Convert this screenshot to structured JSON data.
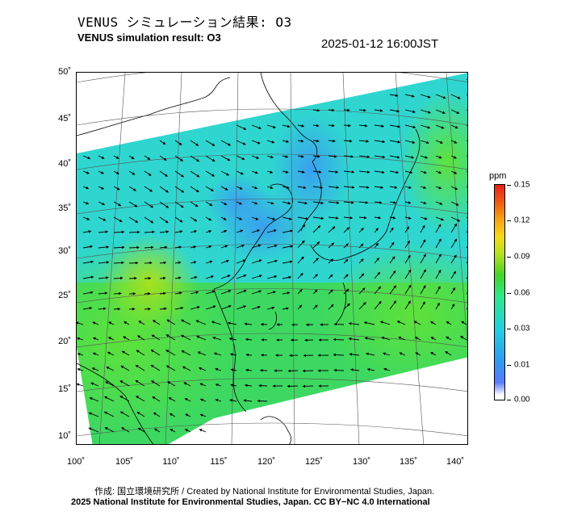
{
  "header": {
    "title_jp": "VENUS シミュレーション結果: O3",
    "title_en": "VENUS simulation result: O3",
    "timestamp": "2025-01-12 16:00JST"
  },
  "map": {
    "lat_labels": [
      "50˚",
      "45˚",
      "40˚",
      "35˚",
      "30˚",
      "25˚",
      "20˚",
      "15˚",
      "10˚"
    ],
    "lon_labels": [
      "100˚",
      "105˚",
      "110˚",
      "115˚",
      "120˚",
      "125˚",
      "130˚",
      "135˚",
      "140˚"
    ],
    "field": "O3 concentration with wind vectors"
  },
  "colorbar": {
    "unit": "ppm",
    "labels": [
      "0.15",
      "0.12",
      "0.09",
      "0.06",
      "0.03",
      "0.01",
      "0.00"
    ],
    "colors": [
      "#ffffff",
      "#2f9bf0",
      "#22d0e0",
      "#44d426",
      "#f6d916",
      "#f05a12",
      "#e3231a"
    ]
  },
  "footer": {
    "credit_line_1": "作成: 国立環境研究所 / Created by National Institute for Environmental Studies, Japan.",
    "credit_line_2": "2025 National Institute for Environmental Studies, Japan. CC BY−NC 4.0 International"
  }
}
